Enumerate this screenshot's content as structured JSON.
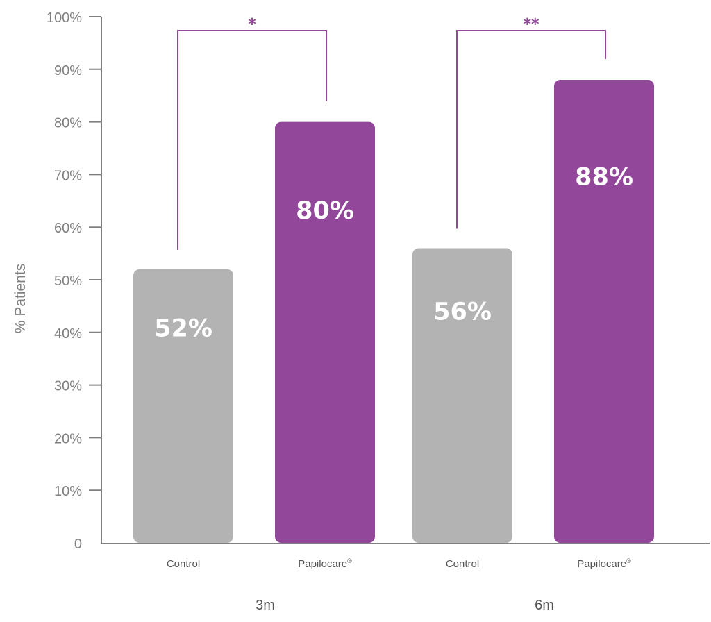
{
  "chart_data": {
    "type": "bar",
    "ylabel": "% Patients",
    "ylim": [
      0,
      100
    ],
    "yticks": [
      "0",
      "10%",
      "20%",
      "30%",
      "40%",
      "50%",
      "60%",
      "70%",
      "80%",
      "90%",
      "100%"
    ],
    "groups": [
      {
        "label": "3m",
        "bars": [
          {
            "category": "Control",
            "value": 52,
            "label": "52%",
            "color": "#b3b3b3"
          },
          {
            "category": "Papilocare",
            "mark": "®",
            "value": 80,
            "label": "80%",
            "color": "#93479a"
          }
        ],
        "significance": "*"
      },
      {
        "label": "6m",
        "bars": [
          {
            "category": "Control",
            "value": 56,
            "label": "56%",
            "color": "#b3b3b3"
          },
          {
            "category": "Papilocare",
            "mark": "®",
            "value": 88,
            "label": "88%",
            "color": "#93479a"
          }
        ],
        "significance": "**"
      }
    ],
    "colors": {
      "control": "#b3b3b3",
      "treatment": "#93479a",
      "axis": "#808080",
      "bracket": "#93479a"
    },
    "grid": false,
    "legend": "none"
  }
}
